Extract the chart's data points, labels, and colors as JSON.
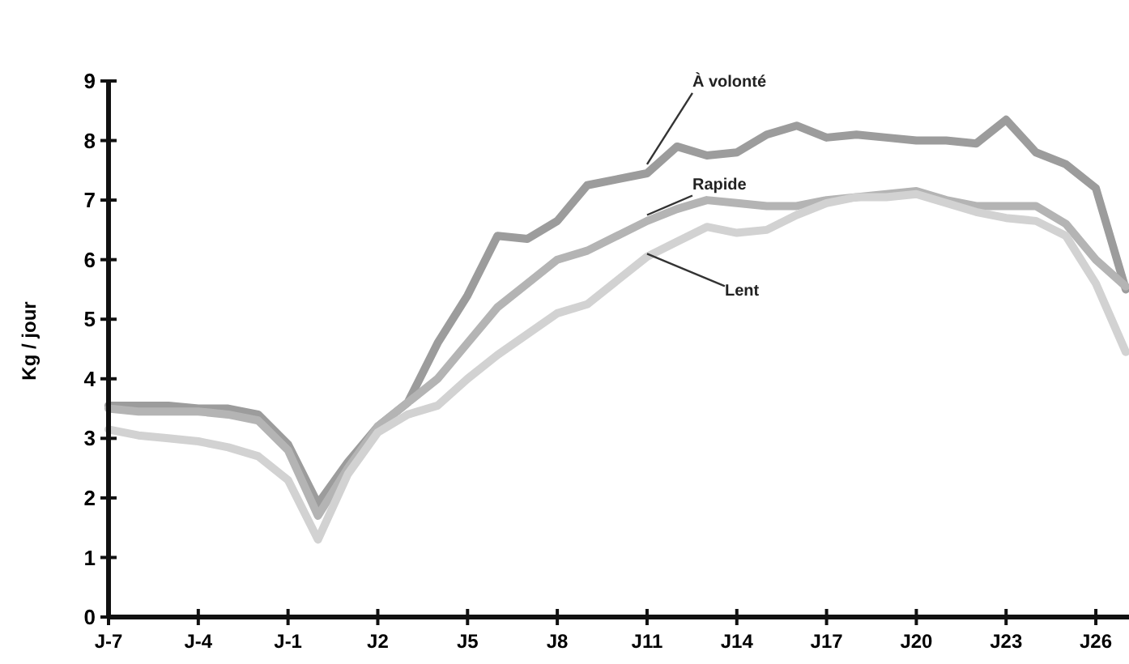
{
  "chart_data": {
    "type": "line",
    "ylabel": "Kg / jour",
    "ylim": [
      0,
      9
    ],
    "categories": [
      "J-7",
      null,
      null,
      "J-4",
      null,
      null,
      "J-1",
      null,
      null,
      "J2",
      null,
      null,
      "J5",
      null,
      null,
      "J8",
      null,
      null,
      "J11",
      null,
      null,
      "J14",
      null,
      null,
      "J17",
      null,
      null,
      "J20",
      null,
      null,
      "J23",
      null,
      null,
      "J26",
      null
    ],
    "yticks": [
      0,
      1,
      2,
      3,
      4,
      5,
      6,
      7,
      8,
      9
    ],
    "grid": false,
    "marker": "none",
    "line_style": "solid",
    "series": [
      {
        "color": "#9c9c9c",
        "values": [
          3.55,
          3.55,
          3.55,
          3.5,
          3.5,
          3.4,
          2.9,
          1.9,
          2.6,
          3.2,
          3.6,
          4.6,
          5.4,
          6.4,
          6.35,
          6.65,
          7.25,
          7.35,
          7.45,
          7.9,
          7.75,
          7.8,
          8.1,
          8.25,
          8.05,
          8.1,
          8.05,
          8.0,
          8.0,
          7.95,
          8.35,
          7.8,
          7.6,
          7.2,
          5.5
        ]
      },
      {
        "color": "#b4b4b4",
        "values": [
          3.5,
          3.45,
          3.45,
          3.45,
          3.4,
          3.3,
          2.8,
          1.7,
          2.5,
          3.2,
          3.6,
          4.0,
          4.6,
          5.2,
          5.6,
          6.0,
          6.15,
          6.4,
          6.65,
          6.85,
          7.0,
          6.95,
          6.9,
          6.9,
          7.0,
          7.05,
          7.1,
          7.15,
          7.0,
          6.9,
          6.9,
          6.9,
          6.6,
          6.0,
          5.55
        ]
      },
      {
        "color": "#d2d2d2",
        "values": [
          3.15,
          3.05,
          3.0,
          2.95,
          2.85,
          2.7,
          2.3,
          1.3,
          2.4,
          3.1,
          3.4,
          3.55,
          4.0,
          4.4,
          4.75,
          5.1,
          5.25,
          5.65,
          6.05,
          6.3,
          6.55,
          6.45,
          6.5,
          6.75,
          6.95,
          7.05,
          7.05,
          7.1,
          6.95,
          6.8,
          6.7,
          6.65,
          6.4,
          5.6,
          4.45
        ]
      }
    ],
    "annotations": [
      {
        "text": "À volonté",
        "x": "J11",
        "y": 7.6
      },
      {
        "text": "Rapide",
        "x": "J11",
        "y": 6.75
      },
      {
        "text": "Lent",
        "x": "J11",
        "y": 6.1
      }
    ]
  }
}
